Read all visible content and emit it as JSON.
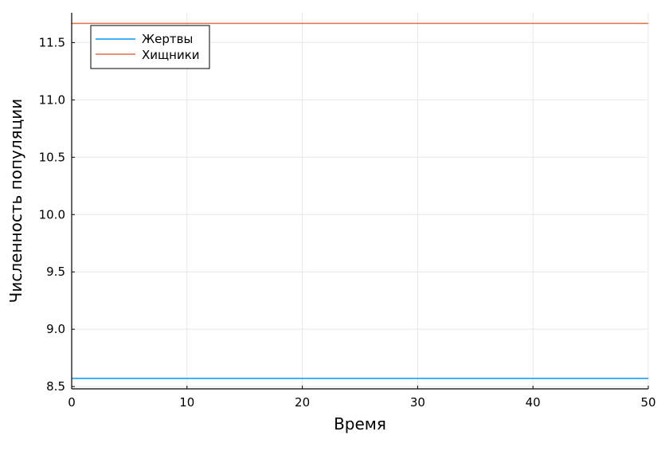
{
  "chart_data": {
    "type": "line",
    "xlabel": "Время",
    "ylabel": "Численность популяции",
    "xlim": [
      0,
      50
    ],
    "ylim": [
      8.48,
      11.76
    ],
    "xticks": [
      0,
      10,
      20,
      30,
      40,
      50
    ],
    "yticks": [
      8.5,
      9.0,
      9.5,
      10.0,
      10.5,
      11.0,
      11.5
    ],
    "xtick_labels": [
      "0",
      "10",
      "20",
      "30",
      "40",
      "50"
    ],
    "ytick_labels": [
      "8.5",
      "9.0",
      "9.5",
      "10.0",
      "10.5",
      "11.0",
      "11.5"
    ],
    "grid": true,
    "legend_position": "top-left",
    "series": [
      {
        "name": "Жертвы",
        "color": "#009af9",
        "x": [
          0,
          50
        ],
        "y": [
          8.571,
          8.571
        ]
      },
      {
        "name": "Хищники",
        "color": "#e26f46",
        "x": [
          0,
          50
        ],
        "y": [
          11.667,
          11.667
        ]
      }
    ]
  }
}
